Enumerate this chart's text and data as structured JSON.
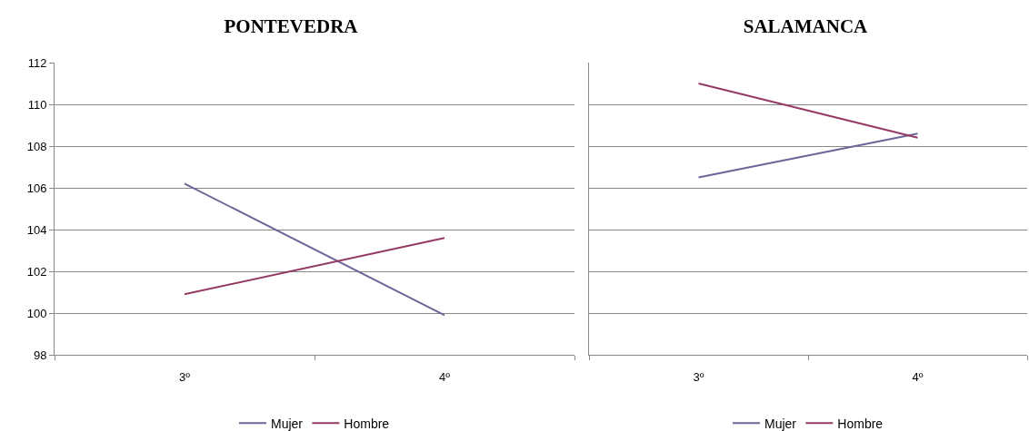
{
  "chart_data": [
    {
      "type": "line",
      "title": "PONTEVEDRA",
      "categories": [
        "3º",
        "4º"
      ],
      "series": [
        {
          "name": "Mujer",
          "color": "#6b6699",
          "values": [
            106.2,
            99.9
          ]
        },
        {
          "name": "Hombre",
          "color": "#953a62",
          "values": [
            100.9,
            103.6
          ]
        }
      ],
      "ylim": [
        98,
        112
      ],
      "yticks": [
        98,
        100,
        102,
        104,
        106,
        108,
        110,
        112
      ],
      "grid": "y",
      "legend": "bottom",
      "marker": "none"
    },
    {
      "type": "line",
      "title": "SALAMANCA",
      "categories": [
        "3º",
        "4º"
      ],
      "series": [
        {
          "name": "Mujer",
          "color": "#6b6699",
          "values": [
            106.5,
            108.6
          ]
        },
        {
          "name": "Hombre",
          "color": "#953a62",
          "values": [
            111.0,
            108.4
          ]
        }
      ],
      "ylim": [
        98,
        112
      ],
      "yticks": [
        98,
        100,
        102,
        104,
        106,
        108,
        110,
        112
      ],
      "grid": "y",
      "legend": "bottom",
      "marker": "none",
      "tick_labels": "x"
    }
  ]
}
